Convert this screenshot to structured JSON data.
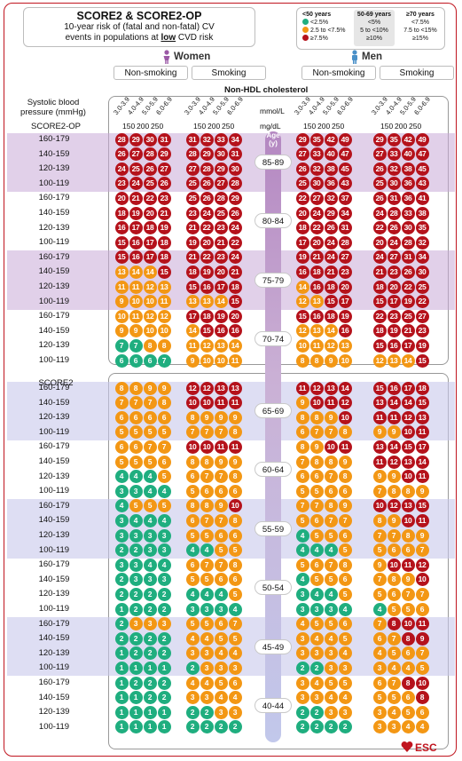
{
  "header": {
    "title": "SCORE2 & SCORE2-OP",
    "subtitle_line1": "10-year risk of (fatal and non-fatal) CV",
    "subtitle_line2_pre": "events in populations at ",
    "subtitle_line2_u": "low",
    "subtitle_line2_post": " CVD risk"
  },
  "legend": {
    "col1_head": "<50 years",
    "col2_head": "50-69 years",
    "col3_head": "≥70 years",
    "low": [
      "<2.5%",
      "<5%",
      "<7.5%"
    ],
    "mid": [
      "2.5 to <7.5%",
      "5 to <10%",
      "7.5 to <15%"
    ],
    "high": [
      "≥7.5%",
      "≥10%",
      "≥15%"
    ],
    "colors": {
      "low": "#1fae7f",
      "mid": "#f39714",
      "high": "#b5121b"
    }
  },
  "sexes": {
    "women": "Women",
    "men": "Men"
  },
  "smoking": {
    "nonsmoking": "Non-smoking",
    "smoking": "Smoking"
  },
  "axis": {
    "sbp_label_l1": "Systolic blood",
    "sbp_label_l2": "pressure (mmHg)",
    "nonhdl_label": "Non-HDL cholesterol",
    "mmol_label": "mmol/L",
    "mgdl_label": "mg/dL",
    "chol_mmol": [
      "3.0-3.9",
      "4.0-4.9",
      "5.0-5.9",
      "6.0-6.9"
    ],
    "chol_mgdl": [
      "150",
      "200",
      "250"
    ],
    "age_label": "Age (y)"
  },
  "section_labels": {
    "op": "SCORE2-OP",
    "score2": "SCORE2"
  },
  "brand": "ESC",
  "chart_data": {
    "type": "table",
    "title": "SCORE2 & SCORE2-OP",
    "sbp_rows": [
      "160-179",
      "140-159",
      "120-139",
      "100-119"
    ],
    "columns": [
      "Women Non-smoking",
      "Women Smoking",
      "Men Non-smoking",
      "Men Smoking"
    ],
    "age_groups": [
      {
        "age": "85-89",
        "section": "op",
        "cells": [
          [
            [
              28,
              29,
              30,
              31
            ],
            [
              31,
              32,
              33,
              34
            ],
            [
              29,
              35,
              42,
              49
            ],
            [
              29,
              35,
              42,
              49
            ]
          ],
          [
            [
              26,
              27,
              28,
              29
            ],
            [
              28,
              29,
              30,
              31
            ],
            [
              27,
              33,
              40,
              47
            ],
            [
              27,
              33,
              40,
              47
            ]
          ],
          [
            [
              24,
              25,
              26,
              27
            ],
            [
              27,
              28,
              29,
              30
            ],
            [
              26,
              32,
              38,
              45
            ],
            [
              26,
              32,
              38,
              45
            ]
          ],
          [
            [
              23,
              24,
              25,
              26
            ],
            [
              25,
              26,
              27,
              28
            ],
            [
              25,
              30,
              36,
              43
            ],
            [
              25,
              30,
              36,
              43
            ]
          ]
        ]
      },
      {
        "age": "80-84",
        "section": "op",
        "cells": [
          [
            [
              20,
              21,
              22,
              23
            ],
            [
              25,
              26,
              28,
              29
            ],
            [
              22,
              27,
              32,
              37
            ],
            [
              26,
              31,
              36,
              41
            ]
          ],
          [
            [
              18,
              19,
              20,
              21
            ],
            [
              23,
              24,
              25,
              26
            ],
            [
              20,
              24,
              29,
              34
            ],
            [
              24,
              28,
              33,
              38
            ]
          ],
          [
            [
              16,
              17,
              18,
              19
            ],
            [
              21,
              22,
              23,
              24
            ],
            [
              18,
              22,
              26,
              31
            ],
            [
              22,
              26,
              30,
              35
            ]
          ],
          [
            [
              15,
              16,
              17,
              18
            ],
            [
              19,
              20,
              21,
              22
            ],
            [
              17,
              20,
              24,
              28
            ],
            [
              20,
              24,
              28,
              32
            ]
          ]
        ]
      },
      {
        "age": "75-79",
        "section": "op",
        "cells": [
          [
            [
              15,
              16,
              17,
              18
            ],
            [
              21,
              22,
              23,
              24
            ],
            [
              19,
              21,
              24,
              27
            ],
            [
              24,
              27,
              31,
              34
            ]
          ],
          [
            [
              13,
              14,
              14,
              15
            ],
            [
              18,
              19,
              20,
              21
            ],
            [
              16,
              18,
              21,
              23
            ],
            [
              21,
              23,
              26,
              30
            ]
          ],
          [
            [
              11,
              11,
              12,
              13
            ],
            [
              15,
              16,
              17,
              18
            ],
            [
              14,
              16,
              18,
              20
            ],
            [
              18,
              20,
              22,
              25
            ]
          ],
          [
            [
              9,
              10,
              10,
              11
            ],
            [
              13,
              13,
              14,
              15
            ],
            [
              12,
              13,
              15,
              17
            ],
            [
              15,
              17,
              19,
              22
            ]
          ]
        ]
      },
      {
        "age": "70-74",
        "section": "op",
        "cells": [
          [
            [
              10,
              11,
              12,
              12
            ],
            [
              17,
              18,
              19,
              20
            ],
            [
              15,
              16,
              18,
              19
            ],
            [
              22,
              23,
              25,
              27
            ]
          ],
          [
            [
              9,
              9,
              10,
              10
            ],
            [
              14,
              15,
              16,
              16
            ],
            [
              12,
              13,
              14,
              16
            ],
            [
              18,
              19,
              21,
              23
            ]
          ],
          [
            [
              7,
              7,
              8,
              8
            ],
            [
              11,
              12,
              13,
              14
            ],
            [
              10,
              11,
              12,
              13
            ],
            [
              15,
              16,
              17,
              19
            ]
          ],
          [
            [
              6,
              6,
              6,
              7
            ],
            [
              9,
              10,
              10,
              11
            ],
            [
              8,
              8,
              9,
              10
            ],
            [
              12,
              13,
              14,
              15
            ]
          ]
        ]
      },
      {
        "age": "65-69",
        "section": "score2",
        "cells": [
          [
            [
              8,
              8,
              9,
              9
            ],
            [
              12,
              12,
              13,
              13
            ],
            [
              11,
              12,
              13,
              14
            ],
            [
              15,
              16,
              17,
              18
            ]
          ],
          [
            [
              7,
              7,
              7,
              8
            ],
            [
              10,
              10,
              11,
              11
            ],
            [
              9,
              10,
              11,
              12
            ],
            [
              13,
              14,
              14,
              15
            ]
          ],
          [
            [
              6,
              6,
              6,
              6
            ],
            [
              8,
              9,
              9,
              9
            ],
            [
              8,
              8,
              9,
              10
            ],
            [
              11,
              11,
              12,
              13
            ]
          ],
          [
            [
              5,
              5,
              5,
              5
            ],
            [
              7,
              7,
              7,
              8
            ],
            [
              6,
              7,
              7,
              8
            ],
            [
              9,
              9,
              10,
              11
            ]
          ]
        ]
      },
      {
        "age": "60-64",
        "section": "score2",
        "cells": [
          [
            [
              6,
              6,
              7,
              7
            ],
            [
              10,
              10,
              11,
              11
            ],
            [
              8,
              9,
              10,
              11
            ],
            [
              13,
              14,
              15,
              17
            ]
          ],
          [
            [
              5,
              5,
              5,
              6
            ],
            [
              8,
              8,
              9,
              9
            ],
            [
              7,
              8,
              8,
              9
            ],
            [
              11,
              12,
              13,
              14
            ]
          ],
          [
            [
              4,
              4,
              4,
              5
            ],
            [
              6,
              7,
              7,
              8
            ],
            [
              6,
              6,
              7,
              8
            ],
            [
              9,
              9,
              10,
              11
            ]
          ],
          [
            [
              3,
              3,
              4,
              4
            ],
            [
              5,
              6,
              6,
              6
            ],
            [
              5,
              5,
              6,
              6
            ],
            [
              7,
              8,
              8,
              9
            ]
          ]
        ]
      },
      {
        "age": "55-59",
        "section": "score2",
        "cells": [
          [
            [
              4,
              5,
              5,
              5
            ],
            [
              8,
              8,
              9,
              10
            ],
            [
              7,
              7,
              8,
              9
            ],
            [
              10,
              12,
              13,
              15
            ]
          ],
          [
            [
              3,
              4,
              4,
              4
            ],
            [
              6,
              7,
              7,
              8
            ],
            [
              5,
              6,
              7,
              7
            ],
            [
              8,
              9,
              10,
              11
            ]
          ],
          [
            [
              3,
              3,
              3,
              3
            ],
            [
              5,
              5,
              6,
              6
            ],
            [
              4,
              5,
              5,
              6
            ],
            [
              7,
              7,
              8,
              9
            ]
          ],
          [
            [
              2,
              2,
              3,
              3
            ],
            [
              4,
              4,
              5,
              5
            ],
            [
              4,
              4,
              4,
              5
            ],
            [
              5,
              6,
              6,
              7
            ]
          ]
        ]
      },
      {
        "age": "50-54",
        "section": "score2",
        "cells": [
          [
            [
              3,
              3,
              4,
              4
            ],
            [
              6,
              7,
              7,
              8
            ],
            [
              5,
              6,
              7,
              8
            ],
            [
              9,
              10,
              11,
              12
            ]
          ],
          [
            [
              2,
              3,
              3,
              3
            ],
            [
              5,
              5,
              6,
              6
            ],
            [
              4,
              5,
              5,
              6
            ],
            [
              7,
              8,
              9,
              10
            ]
          ],
          [
            [
              2,
              2,
              2,
              2
            ],
            [
              4,
              4,
              4,
              5
            ],
            [
              3,
              4,
              4,
              5
            ],
            [
              5,
              6,
              7,
              7
            ]
          ],
          [
            [
              1,
              2,
              2,
              2
            ],
            [
              3,
              3,
              3,
              4
            ],
            [
              3,
              3,
              3,
              4
            ],
            [
              4,
              5,
              5,
              6
            ]
          ]
        ]
      },
      {
        "age": "45-49",
        "section": "score2",
        "cells": [
          [
            [
              2,
              3,
              3,
              3
            ],
            [
              5,
              5,
              6,
              7
            ],
            [
              4,
              5,
              5,
              6
            ],
            [
              7,
              8,
              10,
              11
            ]
          ],
          [
            [
              2,
              2,
              2,
              2
            ],
            [
              4,
              4,
              5,
              5
            ],
            [
              3,
              4,
              4,
              5
            ],
            [
              6,
              7,
              8,
              9
            ]
          ],
          [
            [
              1,
              2,
              2,
              2
            ],
            [
              3,
              3,
              4,
              4
            ],
            [
              3,
              3,
              3,
              4
            ],
            [
              4,
              5,
              6,
              7
            ]
          ],
          [
            [
              1,
              1,
              1,
              1
            ],
            [
              2,
              3,
              3,
              3
            ],
            [
              2,
              2,
              3,
              3
            ],
            [
              3,
              4,
              4,
              5
            ]
          ]
        ]
      },
      {
        "age": "40-44",
        "section": "score2",
        "cells": [
          [
            [
              1,
              2,
              2,
              2
            ],
            [
              4,
              4,
              5,
              6
            ],
            [
              3,
              4,
              5,
              5
            ],
            [
              6,
              7,
              8,
              10
            ]
          ],
          [
            [
              1,
              1,
              2,
              2
            ],
            [
              3,
              3,
              4,
              4
            ],
            [
              3,
              3,
              4,
              4
            ],
            [
              5,
              5,
              6,
              8
            ]
          ],
          [
            [
              1,
              1,
              1,
              1
            ],
            [
              2,
              2,
              3,
              3
            ],
            [
              2,
              2,
              3,
              3
            ],
            [
              3,
              4,
              5,
              6
            ]
          ],
          [
            [
              1,
              1,
              1,
              1
            ],
            [
              2,
              2,
              2,
              2
            ],
            [
              2,
              2,
              2,
              2
            ],
            [
              3,
              3,
              4,
              4
            ]
          ]
        ]
      }
    ]
  }
}
